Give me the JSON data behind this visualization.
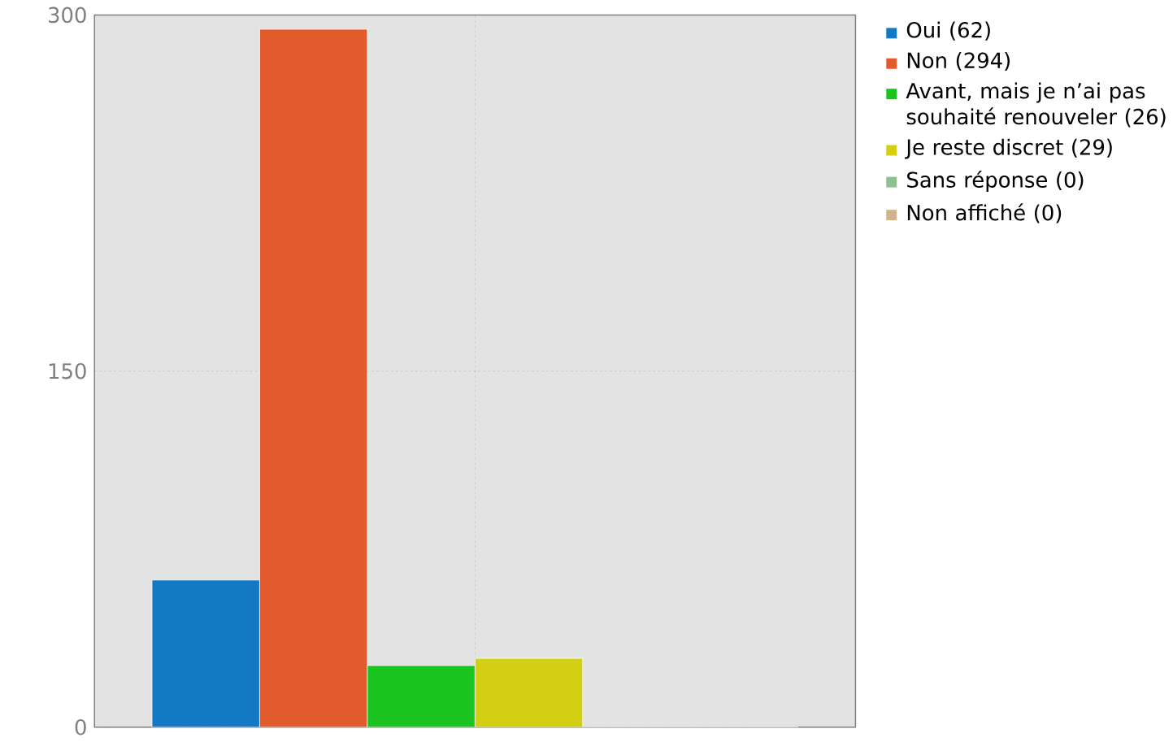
{
  "chart_data": {
    "type": "bar",
    "categories": [
      null
    ],
    "series": [
      {
        "name": "Oui (62)",
        "color": "#1479c4",
        "values": [
          62
        ]
      },
      {
        "name": "Non (294)",
        "color": "#e25b2c",
        "values": [
          294
        ]
      },
      {
        "name": "Avant, mais je n’ai pas souhaité renouveler (26)",
        "color": "#1cc420",
        "values": [
          26
        ]
      },
      {
        "name": "Je reste discret (29)",
        "color": "#d3cf12",
        "values": [
          29
        ]
      },
      {
        "name": "Sans réponse (0)",
        "color": "#8fbf8f",
        "values": [
          0
        ]
      },
      {
        "name": "Non affiché (0)",
        "color": "#d2b48c",
        "values": [
          0
        ]
      }
    ],
    "ylim": [
      0,
      300
    ],
    "yticks": [
      0,
      150,
      300
    ],
    "grid": true,
    "legend": "top right",
    "tick_labels": "y"
  }
}
